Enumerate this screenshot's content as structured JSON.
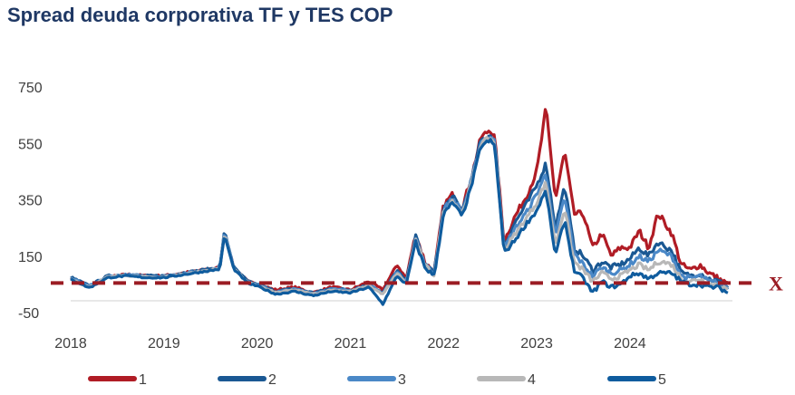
{
  "chart_data": {
    "type": "line",
    "title": "Spread deuda corporativa TF y TES COP",
    "xlabel": "",
    "ylabel": "",
    "xlim": [
      2018.0,
      2025.1
    ],
    "ylim": [
      -50,
      750
    ],
    "y_ticks": [
      "750",
      "550",
      "350",
      "150",
      "-50"
    ],
    "y_tick_values": [
      750,
      550,
      350,
      150,
      -50
    ],
    "x_ticks": [
      "2018",
      "2019",
      "2020",
      "2021",
      "2022",
      "2023",
      "2024"
    ],
    "x_tick_values": [
      2018,
      2019,
      2020,
      2021,
      2022,
      2023,
      2024
    ],
    "grid": false,
    "legend_position": "bottom",
    "reference_line": {
      "y": 55,
      "label": "X",
      "color": "#9b1c24",
      "style": "dashed"
    },
    "series": [
      {
        "name": "1",
        "color": "#b01c25",
        "x": [
          2018.0,
          2018.2,
          2018.4,
          2018.6,
          2018.8,
          2019.0,
          2019.2,
          2019.4,
          2019.6,
          2019.65,
          2019.75,
          2019.9,
          2020.0,
          2020.2,
          2020.4,
          2020.6,
          2020.8,
          2021.0,
          2021.2,
          2021.35,
          2021.5,
          2021.6,
          2021.7,
          2021.8,
          2021.9,
          2022.0,
          2022.1,
          2022.2,
          2022.3,
          2022.4,
          2022.5,
          2022.55,
          2022.65,
          2022.75,
          2022.9,
          2023.0,
          2023.05,
          2023.1,
          2023.2,
          2023.3,
          2023.4,
          2023.5,
          2023.6,
          2023.7,
          2023.8,
          2023.9,
          2024.0,
          2024.1,
          2024.2,
          2024.3,
          2024.35,
          2024.45,
          2024.55,
          2024.65,
          2024.75,
          2024.85,
          2024.95,
          2025.05
        ],
        "y": [
          70,
          40,
          75,
          85,
          80,
          80,
          90,
          100,
          110,
          230,
          110,
          60,
          50,
          30,
          40,
          20,
          40,
          30,
          60,
          30,
          120,
          70,
          230,
          130,
          90,
          330,
          370,
          320,
          430,
          570,
          600,
          570,
          200,
          280,
          370,
          450,
          560,
          680,
          350,
          520,
          300,
          300,
          180,
          230,
          150,
          180,
          180,
          240,
          180,
          300,
          280,
          230,
          120,
          100,
          120,
          90,
          70,
          50
        ]
      },
      {
        "name": "2",
        "color": "#1a5893",
        "x": [
          2018.0,
          2018.2,
          2018.4,
          2018.6,
          2018.8,
          2019.0,
          2019.2,
          2019.4,
          2019.6,
          2019.65,
          2019.75,
          2019.9,
          2020.0,
          2020.2,
          2020.4,
          2020.6,
          2020.8,
          2021.0,
          2021.2,
          2021.35,
          2021.5,
          2021.6,
          2021.7,
          2021.8,
          2021.9,
          2022.0,
          2022.1,
          2022.2,
          2022.3,
          2022.4,
          2022.5,
          2022.55,
          2022.65,
          2022.75,
          2022.9,
          2023.0,
          2023.05,
          2023.1,
          2023.2,
          2023.3,
          2023.4,
          2023.5,
          2023.6,
          2023.7,
          2023.8,
          2023.9,
          2024.0,
          2024.1,
          2024.2,
          2024.3,
          2024.35,
          2024.45,
          2024.55,
          2024.65,
          2024.75,
          2024.85,
          2024.95,
          2025.05
        ],
        "y": [
          75,
          45,
          80,
          85,
          80,
          80,
          90,
          100,
          110,
          240,
          110,
          60,
          50,
          25,
          35,
          20,
          35,
          30,
          50,
          20,
          100,
          60,
          220,
          120,
          90,
          320,
          360,
          310,
          420,
          560,
          580,
          560,
          180,
          260,
          340,
          400,
          440,
          480,
          250,
          400,
          180,
          150,
          100,
          130,
          110,
          120,
          140,
          180,
          150,
          200,
          190,
          170,
          90,
          80,
          90,
          70,
          60,
          40
        ]
      },
      {
        "name": "3",
        "color": "#4a88c7",
        "x": [
          2018.0,
          2018.2,
          2018.4,
          2018.6,
          2018.8,
          2019.0,
          2019.2,
          2019.4,
          2019.6,
          2019.65,
          2019.75,
          2019.9,
          2020.0,
          2020.2,
          2020.4,
          2020.6,
          2020.8,
          2021.0,
          2021.2,
          2021.35,
          2021.5,
          2021.6,
          2021.7,
          2021.8,
          2021.9,
          2022.0,
          2022.1,
          2022.2,
          2022.3,
          2022.4,
          2022.5,
          2022.55,
          2022.65,
          2022.75,
          2022.9,
          2023.0,
          2023.05,
          2023.1,
          2023.2,
          2023.3,
          2023.4,
          2023.5,
          2023.6,
          2023.7,
          2023.8,
          2023.9,
          2024.0,
          2024.1,
          2024.2,
          2024.3,
          2024.35,
          2024.45,
          2024.55,
          2024.65,
          2024.75,
          2024.85,
          2024.95,
          2025.05
        ],
        "y": [
          72,
          42,
          78,
          84,
          78,
          78,
          88,
          98,
          108,
          235,
          108,
          58,
          48,
          22,
          33,
          18,
          33,
          28,
          48,
          18,
          95,
          58,
          215,
          118,
          88,
          315,
          355,
          305,
          415,
          555,
          575,
          555,
          175,
          240,
          310,
          370,
          410,
          440,
          220,
          360,
          160,
          120,
          80,
          110,
          90,
          100,
          120,
          150,
          130,
          170,
          165,
          150,
          80,
          70,
          80,
          60,
          55,
          35
        ]
      },
      {
        "name": "4",
        "color": "#b8b8b8",
        "x": [
          2018.0,
          2018.2,
          2018.4,
          2018.6,
          2018.8,
          2019.0,
          2019.2,
          2019.4,
          2019.6,
          2019.65,
          2019.75,
          2019.9,
          2020.0,
          2020.2,
          2020.4,
          2020.6,
          2020.8,
          2021.0,
          2021.2,
          2021.35,
          2021.5,
          2021.6,
          2021.7,
          2021.8,
          2021.9,
          2022.0,
          2022.1,
          2022.2,
          2022.3,
          2022.4,
          2022.5,
          2022.55,
          2022.65,
          2022.75,
          2022.9,
          2023.0,
          2023.05,
          2023.1,
          2023.2,
          2023.3,
          2023.4,
          2023.5,
          2023.6,
          2023.7,
          2023.8,
          2023.9,
          2024.0,
          2024.1,
          2024.2,
          2024.3,
          2024.35,
          2024.45,
          2024.55,
          2024.65,
          2024.75,
          2024.85,
          2024.95,
          2025.05
        ],
        "y": [
          70,
          40,
          76,
          82,
          76,
          76,
          86,
          96,
          106,
          230,
          106,
          56,
          46,
          20,
          30,
          15,
          30,
          25,
          45,
          15,
          90,
          55,
          210,
          115,
          85,
          310,
          350,
          300,
          410,
          550,
          570,
          550,
          170,
          220,
          290,
          340,
          380,
          410,
          190,
          320,
          130,
          100,
          60,
          90,
          70,
          80,
          100,
          120,
          100,
          130,
          130,
          120,
          70,
          60,
          70,
          50,
          50,
          30
        ]
      },
      {
        "name": "5",
        "color": "#0f5c9e",
        "x": [
          2018.0,
          2018.2,
          2018.4,
          2018.6,
          2018.8,
          2019.0,
          2019.2,
          2019.4,
          2019.6,
          2019.65,
          2019.75,
          2019.9,
          2020.0,
          2020.2,
          2020.4,
          2020.6,
          2020.8,
          2021.0,
          2021.2,
          2021.35,
          2021.5,
          2021.6,
          2021.7,
          2021.8,
          2021.9,
          2022.0,
          2022.1,
          2022.2,
          2022.3,
          2022.4,
          2022.5,
          2022.55,
          2022.65,
          2022.75,
          2022.9,
          2023.0,
          2023.05,
          2023.1,
          2023.2,
          2023.3,
          2023.4,
          2023.5,
          2023.6,
          2023.7,
          2023.8,
          2023.9,
          2024.0,
          2024.1,
          2024.2,
          2024.3,
          2024.35,
          2024.45,
          2024.55,
          2024.65,
          2024.75,
          2024.85,
          2024.95,
          2025.05
        ],
        "y": [
          68,
          38,
          74,
          80,
          74,
          74,
          84,
          94,
          104,
          225,
          104,
          54,
          44,
          15,
          25,
          10,
          25,
          20,
          40,
          -20,
          80,
          50,
          200,
          110,
          80,
          300,
          340,
          290,
          400,
          540,
          560,
          540,
          160,
          200,
          270,
          310,
          350,
          380,
          150,
          280,
          100,
          70,
          20,
          60,
          40,
          50,
          80,
          90,
          70,
          90,
          90,
          90,
          60,
          50,
          50,
          40,
          40,
          20
        ]
      }
    ]
  }
}
